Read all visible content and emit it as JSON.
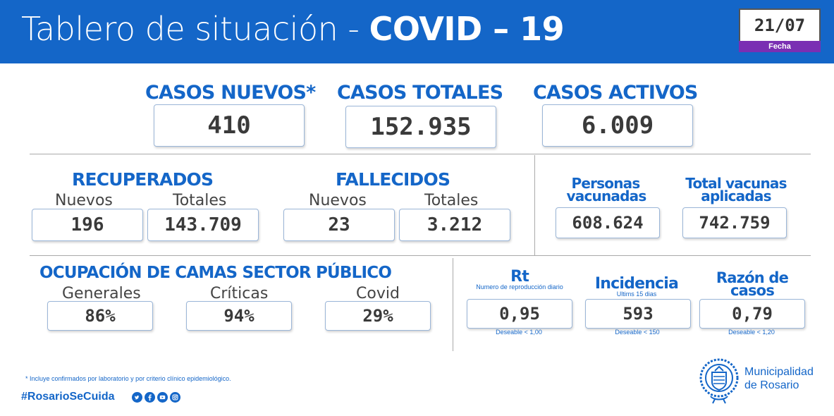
{
  "header": {
    "title_light": "Tablero de situación - ",
    "title_bold": "COVID – 19",
    "date": "21/07",
    "date_label": "Fecha"
  },
  "casos": {
    "nuevos_label": "CASOS NUEVOS*",
    "nuevos_value": "410",
    "totales_label": "CASOS TOTALES",
    "totales_value": "152.935",
    "activos_label": "CASOS ACTIVOS",
    "activos_value": "6.009"
  },
  "recuperados": {
    "label": "RECUPERADOS",
    "nuevos_label": "Nuevos",
    "nuevos_value": "196",
    "totales_label": "Totales",
    "totales_value": "143.709"
  },
  "fallecidos": {
    "label": "FALLECIDOS",
    "nuevos_label": "Nuevos",
    "nuevos_value": "23",
    "totales_label": "Totales",
    "totales_value": "3.212"
  },
  "vacunas": {
    "personas_label_1": "Personas",
    "personas_label_2": "vacunadas",
    "personas_value": "608.624",
    "total_label_1": "Total vacunas",
    "total_label_2": "aplicadas",
    "total_value": "742.759"
  },
  "camas": {
    "label": "OCUPACIÓN DE CAMAS SECTOR PÚBLICO",
    "generales_label": "Generales",
    "generales_value": "86%",
    "criticas_label": "Críticas",
    "criticas_value": "94%",
    "covid_label": "Covid",
    "covid_value": "29%"
  },
  "indicadores": {
    "rt_label": "Rt",
    "rt_sub": "Numero de reproducción diario",
    "rt_value": "0,95",
    "rt_target": "Deseable < 1,00",
    "inc_label": "Incidencia",
    "inc_sub": "Ultims 15 dias",
    "inc_value": "593",
    "inc_target": "Deseable < 150",
    "razon_label_1": "Razón de",
    "razon_label_2": "casos",
    "razon_value": "0,79",
    "razon_target": "Deseable < 1,20"
  },
  "footer": {
    "footnote": "* Incluye confirmados por laboratorio y por criterio clínico epidemiológico.",
    "hashtag": "#RosarioSeCuida",
    "social_icons": [
      "twitter-icon",
      "facebook-icon",
      "youtube-icon",
      "instagram-icon"
    ],
    "muni_line1": "Municipalidad",
    "muni_line2": "de Rosario"
  },
  "colors": {
    "brand_blue": "#1466c8",
    "accent_purple": "#7a2fb3"
  }
}
